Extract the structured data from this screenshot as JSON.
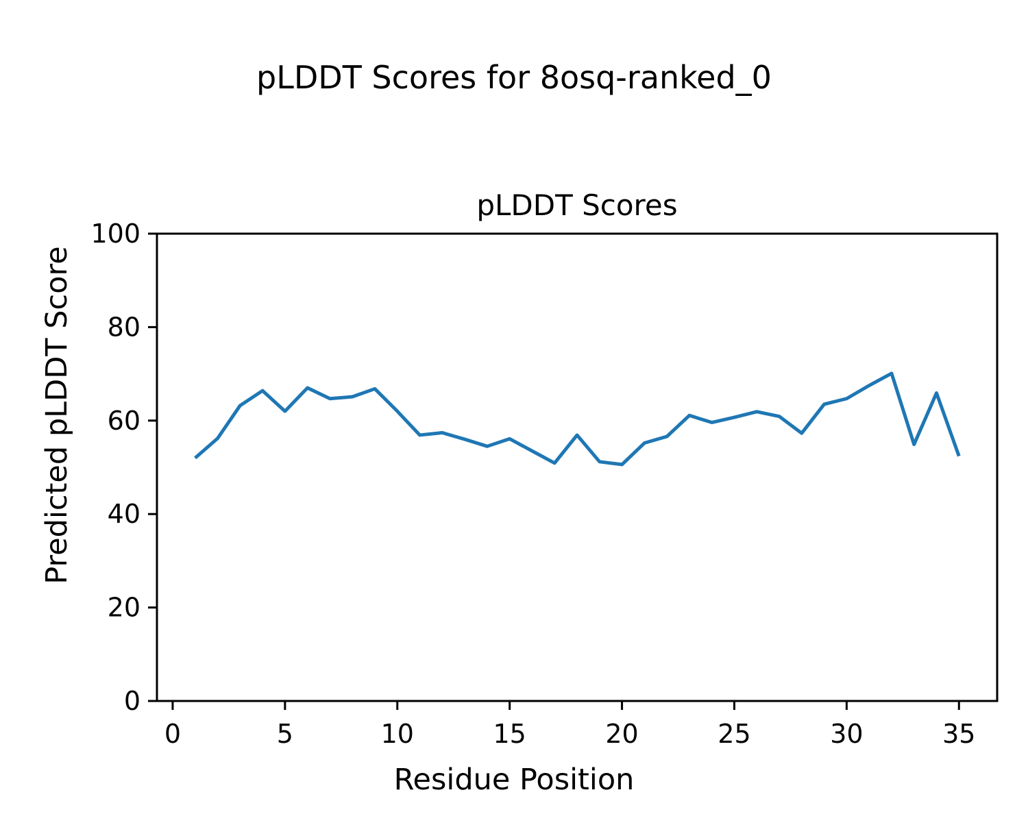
{
  "figure_title": "pLDDT Scores for 8osq-ranked_0",
  "chart_data": {
    "type": "line",
    "title": "pLDDT Scores",
    "xlabel": "Residue Position",
    "ylabel": "Predicted pLDDT Score",
    "x": [
      1,
      2,
      3,
      4,
      5,
      6,
      7,
      8,
      9,
      10,
      11,
      12,
      13,
      14,
      15,
      16,
      17,
      18,
      19,
      20,
      21,
      22,
      23,
      24,
      25,
      26,
      27,
      28,
      29,
      30,
      31,
      32,
      33,
      34,
      35
    ],
    "y": [
      52.0,
      56.2,
      63.2,
      66.4,
      62.0,
      67.0,
      64.7,
      65.1,
      66.8,
      62.0,
      56.9,
      57.4,
      56.0,
      54.5,
      56.1,
      53.5,
      50.9,
      56.9,
      51.2,
      50.6,
      55.2,
      56.6,
      61.1,
      59.6,
      60.7,
      61.9,
      60.9,
      57.3,
      63.5,
      64.7,
      67.5,
      70.1,
      54.9,
      65.9,
      52.4
    ],
    "xlim": [
      -0.7,
      36.7
    ],
    "ylim": [
      0,
      100
    ],
    "x_ticks": [
      0,
      5,
      10,
      15,
      20,
      25,
      30,
      35
    ],
    "y_ticks": [
      0,
      20,
      40,
      60,
      80,
      100
    ],
    "line_color": "#1f77b4",
    "axis_color": "#000000",
    "grid": false,
    "legend": "none"
  }
}
